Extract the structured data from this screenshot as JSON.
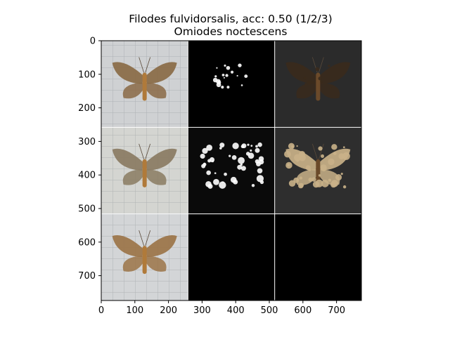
{
  "chart_data": {
    "type": "image-grid",
    "title": {
      "line1": "Filodes fulvidorsalis, acc: 0.50 (1/2/3)",
      "line2": "Omiodes noctescens"
    },
    "xlim": [
      0,
      774
    ],
    "ylim": [
      774,
      0
    ],
    "grid_size": 258,
    "x_ticks": [
      0,
      100,
      200,
      300,
      400,
      500,
      600,
      700
    ],
    "y_ticks": [
      0,
      100,
      200,
      300,
      400,
      500,
      600,
      700
    ],
    "cells": [
      {
        "row": 0,
        "col": 0,
        "kind": "photo",
        "bg": "#cfd1d3",
        "moth": "#8a6a45"
      },
      {
        "row": 0,
        "col": 1,
        "kind": "mask",
        "bg": "#000000",
        "moth": "#ffffff"
      },
      {
        "row": 0,
        "col": 2,
        "kind": "masked-photo",
        "bg": "#2b2b2b",
        "moth": "#3a2a1c"
      },
      {
        "row": 1,
        "col": 0,
        "kind": "photo",
        "bg": "#d4d5d1",
        "moth": "#8a7b62"
      },
      {
        "row": 1,
        "col": 1,
        "kind": "mask",
        "bg": "#0a0a0a",
        "moth": "#ffffff"
      },
      {
        "row": 1,
        "col": 2,
        "kind": "masked-photo",
        "bg": "#2e2e2e",
        "moth": "#c9b188"
      },
      {
        "row": 2,
        "col": 0,
        "kind": "photo",
        "bg": "#d3d5d7",
        "moth": "#9b7448"
      },
      {
        "row": 2,
        "col": 1,
        "kind": "blank",
        "bg": "#000000"
      },
      {
        "row": 2,
        "col": 2,
        "kind": "blank",
        "bg": "#000000"
      }
    ]
  }
}
